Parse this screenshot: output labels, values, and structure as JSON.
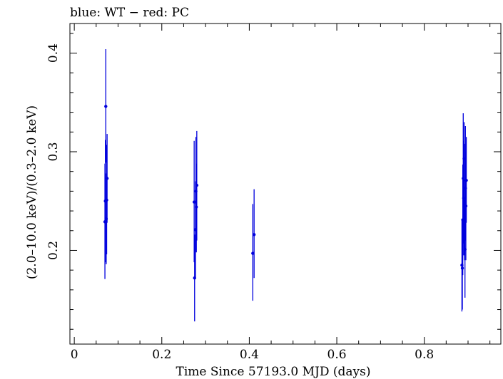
{
  "chart_data": {
    "type": "scatter",
    "title": "blue: WT − red: PC",
    "xlabel": "Time Since 57193.0 MJD (days)",
    "ylabel": "(2.0–10.0 keV)/(0.3–2.0 keV)",
    "xlim": [
      -0.01,
      0.975
    ],
    "ylim": [
      0.105,
      0.43
    ],
    "xticks": [
      0,
      0.2,
      0.4,
      0.6,
      0.8
    ],
    "xtick_labels": [
      "0",
      "0.2",
      "0.4",
      "0.6",
      "0.8"
    ],
    "yticks": [
      0.2,
      0.3,
      0.4
    ],
    "ytick_labels": [
      "0.2",
      "0.3",
      "0.4"
    ],
    "grid": false,
    "series": [
      {
        "name": "WT",
        "color": "#0000dd",
        "points": [
          {
            "x": 0.07,
            "y": 0.229,
            "ylo": 0.171,
            "yhi": 0.288
          },
          {
            "x": 0.071,
            "y": 0.25,
            "ylo": 0.188,
            "yhi": 0.312
          },
          {
            "x": 0.072,
            "y": 0.346,
            "ylo": 0.289,
            "yhi": 0.404
          },
          {
            "x": 0.073,
            "y": 0.232,
            "ylo": 0.186,
            "yhi": 0.278
          },
          {
            "x": 0.074,
            "y": 0.251,
            "ylo": 0.196,
            "yhi": 0.307
          },
          {
            "x": 0.075,
            "y": 0.273,
            "ylo": 0.228,
            "yhi": 0.318
          },
          {
            "x": 0.274,
            "y": 0.249,
            "ylo": 0.188,
            "yhi": 0.311
          },
          {
            "x": 0.275,
            "y": 0.172,
            "ylo": 0.128,
            "yhi": 0.216
          },
          {
            "x": 0.277,
            "y": 0.221,
            "ylo": 0.173,
            "yhi": 0.27
          },
          {
            "x": 0.278,
            "y": 0.26,
            "ylo": 0.2,
            "yhi": 0.315
          },
          {
            "x": 0.279,
            "y": 0.244,
            "ylo": 0.198,
            "yhi": 0.288
          },
          {
            "x": 0.28,
            "y": 0.266,
            "ylo": 0.21,
            "yhi": 0.321
          },
          {
            "x": 0.408,
            "y": 0.197,
            "ylo": 0.149,
            "yhi": 0.247
          },
          {
            "x": 0.411,
            "y": 0.216,
            "ylo": 0.172,
            "yhi": 0.262
          },
          {
            "x": 0.886,
            "y": 0.185,
            "ylo": 0.138,
            "yhi": 0.232
          },
          {
            "x": 0.887,
            "y": 0.182,
            "ylo": 0.14,
            "yhi": 0.224
          },
          {
            "x": 0.888,
            "y": 0.231,
            "ylo": 0.175,
            "yhi": 0.287
          },
          {
            "x": 0.889,
            "y": 0.273,
            "ylo": 0.207,
            "yhi": 0.339
          },
          {
            "x": 0.89,
            "y": 0.253,
            "ylo": 0.195,
            "yhi": 0.311
          },
          {
            "x": 0.891,
            "y": 0.293,
            "ylo": 0.242,
            "yhi": 0.33
          },
          {
            "x": 0.892,
            "y": 0.25,
            "ylo": 0.19,
            "yhi": 0.308
          },
          {
            "x": 0.893,
            "y": 0.201,
            "ylo": 0.152,
            "yhi": 0.25
          },
          {
            "x": 0.894,
            "y": 0.263,
            "ylo": 0.21,
            "yhi": 0.326
          },
          {
            "x": 0.895,
            "y": 0.245,
            "ylo": 0.19,
            "yhi": 0.3
          },
          {
            "x": 0.896,
            "y": 0.271,
            "ylo": 0.228,
            "yhi": 0.315
          }
        ]
      },
      {
        "name": "PC",
        "color": "#dd0000",
        "points": []
      }
    ]
  }
}
